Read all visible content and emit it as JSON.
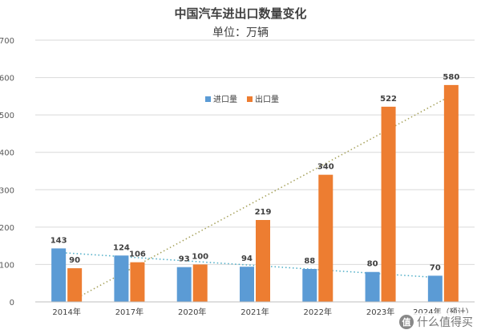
{
  "chart_data": {
    "type": "bar",
    "title": "中国汽车进出口数量变化",
    "subtitle": "单位：万辆",
    "categories": [
      "2014年",
      "2017年",
      "2020年",
      "2021年",
      "2022年",
      "2023年",
      "2024年（预计）"
    ],
    "series": [
      {
        "name": "进口量",
        "color": "#5b9bd5",
        "values": [
          143,
          124,
          93,
          94,
          88,
          80,
          70
        ]
      },
      {
        "name": "出口量",
        "color": "#ed7d31",
        "values": [
          90,
          106,
          100,
          219,
          340,
          522,
          580
        ]
      }
    ],
    "ylim": [
      0,
      700
    ],
    "yticks": [
      0,
      100,
      200,
      300,
      400,
      500,
      600,
      700
    ],
    "grid": true,
    "legend_position": "top-center",
    "trendlines": [
      {
        "series": "进口量",
        "color": "#4bacc6",
        "style": "dotted"
      },
      {
        "series": "出口量",
        "color": "#a5a15a",
        "style": "dotted"
      }
    ]
  },
  "watermark": {
    "logo_text": "值",
    "text": "什么值得买"
  }
}
